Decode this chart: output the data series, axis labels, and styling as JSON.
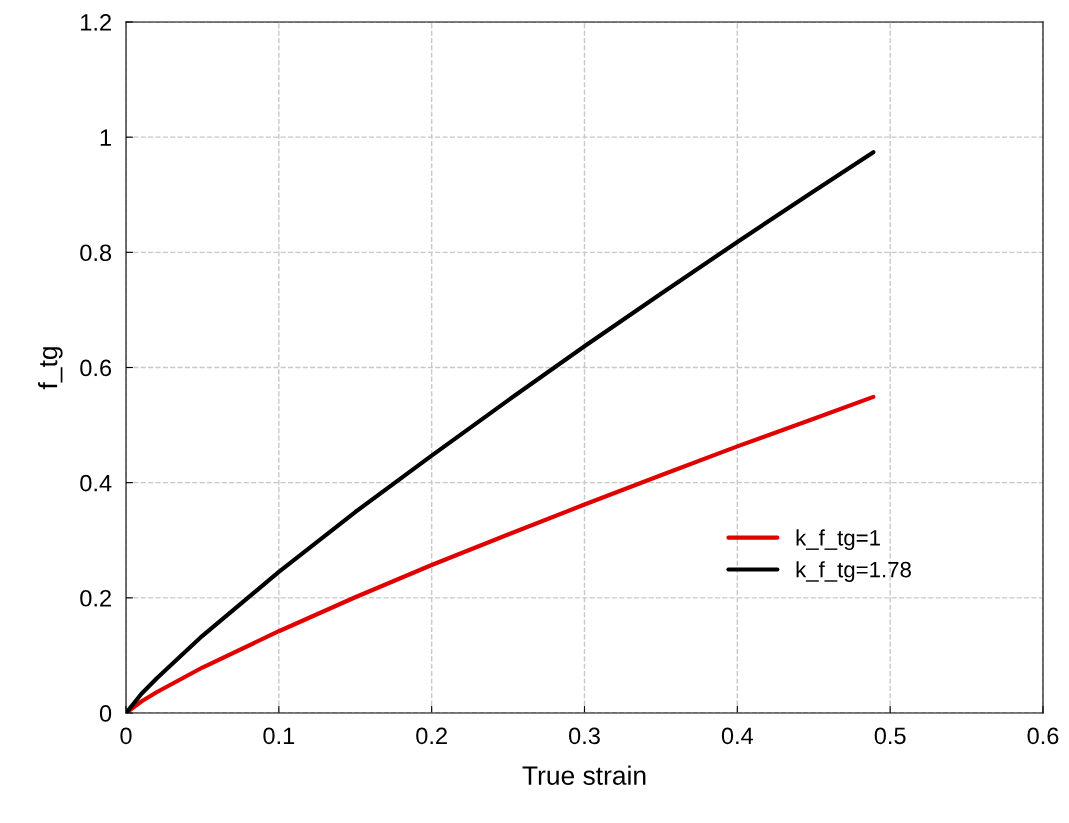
{
  "chart_data": {
    "type": "line",
    "xlabel": "True strain",
    "ylabel": "f_tg",
    "xlim": [
      0,
      0.6
    ],
    "ylim": [
      0,
      1.2
    ],
    "xticks": [
      0,
      0.1,
      0.2,
      0.3,
      0.4,
      0.5,
      0.6
    ],
    "yticks": [
      0,
      0.2,
      0.4,
      0.6,
      0.8,
      1,
      1.2
    ],
    "grid": true,
    "legend": "lower right",
    "marker": "none",
    "line_style": "solid",
    "series": [
      {
        "name": "k_f_tg=1",
        "color": "#e00000",
        "x": [
          0,
          0.01,
          0.02,
          0.05,
          0.1,
          0.15,
          0.2,
          0.25,
          0.3,
          0.35,
          0.4,
          0.45,
          0.489
        ],
        "values": [
          0,
          0.02,
          0.036,
          0.079,
          0.142,
          0.201,
          0.257,
          0.31,
          0.362,
          0.413,
          0.463,
          0.511,
          0.549
        ]
      },
      {
        "name": "k_f_tg=1.78",
        "color": "#000000",
        "x": [
          0,
          0.01,
          0.02,
          0.05,
          0.1,
          0.15,
          0.2,
          0.25,
          0.3,
          0.35,
          0.4,
          0.45,
          0.489
        ],
        "values": [
          0,
          0.033,
          0.06,
          0.134,
          0.245,
          0.349,
          0.447,
          0.543,
          0.637,
          0.728,
          0.818,
          0.906,
          0.974
        ]
      }
    ]
  }
}
